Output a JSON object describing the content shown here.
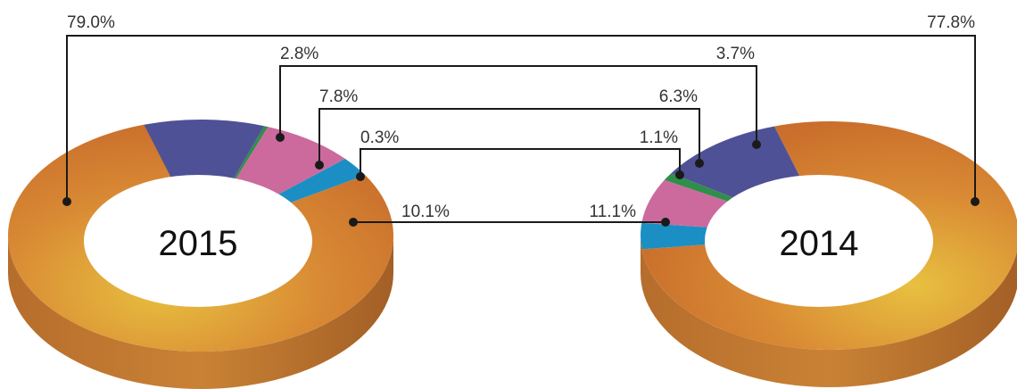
{
  "colors": {
    "orange": "#d4762f",
    "orange_light": "#e8b840",
    "blue": "#1b8fc4",
    "pink": "#cc6a9e",
    "green": "#2f8f4a",
    "purple": "#4f5196",
    "line": "#1a1a1a"
  },
  "chart_data": [
    {
      "type": "pie",
      "variant": "3d-donut",
      "center_label": "2015",
      "slices": [
        {
          "value": 79.0,
          "label": "79.0%",
          "color": "orange"
        },
        {
          "value": 2.8,
          "label": "2.8%",
          "color": "blue"
        },
        {
          "value": 7.8,
          "label": "7.8%",
          "color": "pink"
        },
        {
          "value": 0.3,
          "label": "0.3%",
          "color": "green"
        },
        {
          "value": 10.1,
          "label": "10.1%",
          "color": "purple"
        }
      ]
    },
    {
      "type": "pie",
      "variant": "3d-donut",
      "center_label": "2014",
      "slices": [
        {
          "value": 77.8,
          "label": "77.8%",
          "color": "orange"
        },
        {
          "value": 3.7,
          "label": "3.7%",
          "color": "blue"
        },
        {
          "value": 6.3,
          "label": "6.3%",
          "color": "pink"
        },
        {
          "value": 1.1,
          "label": "1.1%",
          "color": "green"
        },
        {
          "value": 11.1,
          "label": "11.1%",
          "color": "purple"
        }
      ]
    }
  ]
}
